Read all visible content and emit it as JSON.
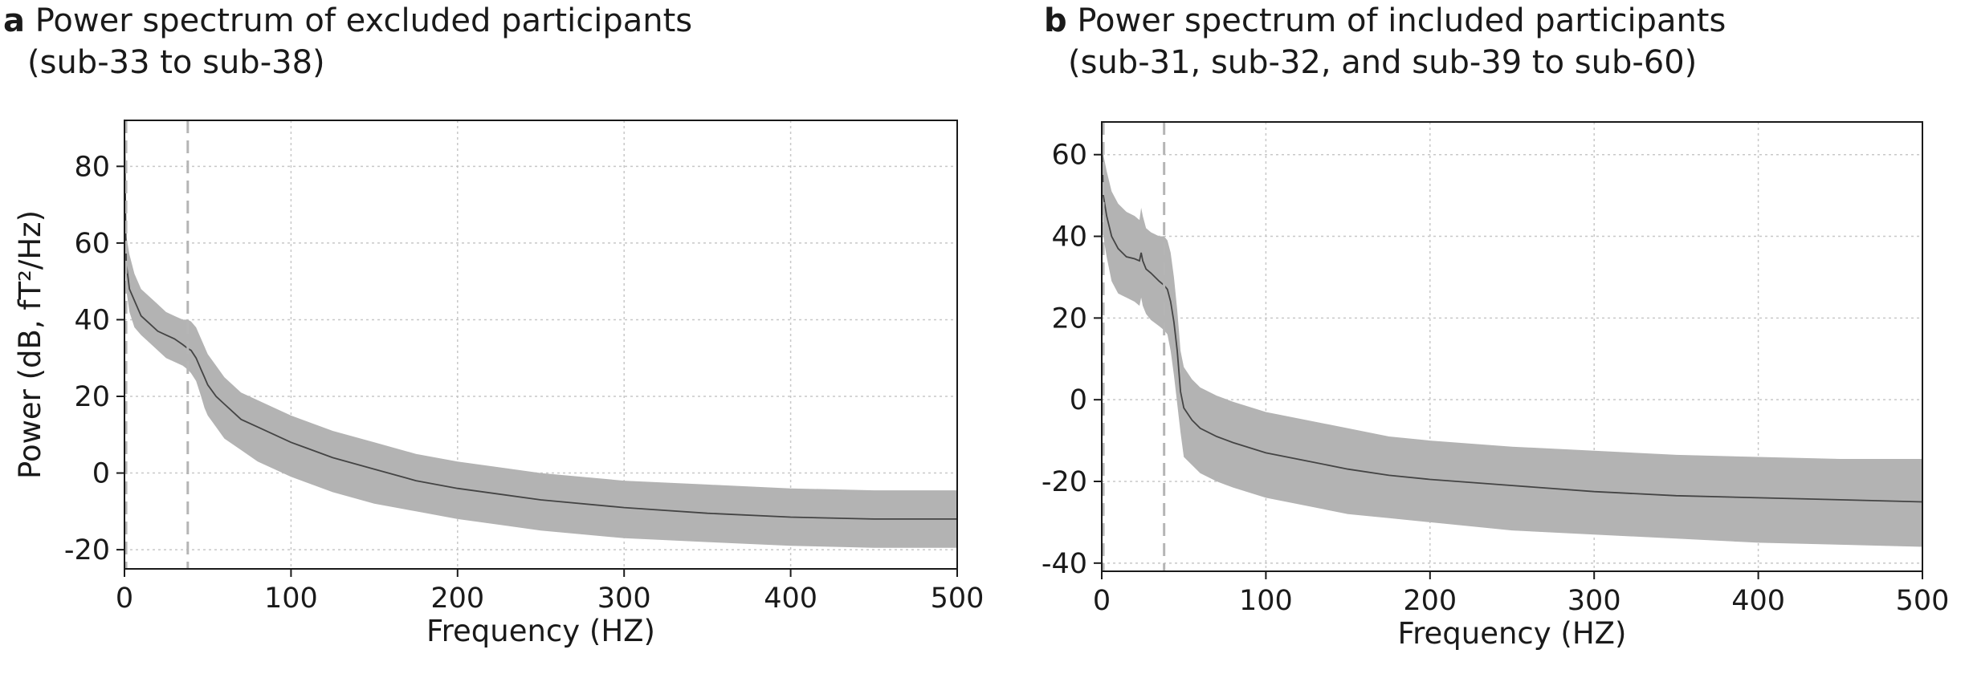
{
  "chart_data": [
    {
      "type": "area",
      "panel_letter": "a",
      "title": "Power spectrum of excluded participants",
      "subtitle": "(sub-33 to sub-38)",
      "xlabel": "Frequency (HZ)",
      "ylabel": "Power (dB, fT²/Hz)",
      "xlim": [
        0,
        500
      ],
      "ylim": [
        -25,
        92
      ],
      "xticks": [
        0,
        100,
        200,
        300,
        400,
        500
      ],
      "yticks": [
        -20,
        0,
        20,
        40,
        60,
        80
      ],
      "grid": true,
      "vlines": [
        1,
        38
      ],
      "line_color": "#444444",
      "band_color": "#b3b3b3",
      "series": [
        {
          "x": [
            0,
            1,
            3,
            6,
            10,
            15,
            20,
            25,
            30,
            35,
            38,
            40,
            43,
            46,
            48,
            50,
            55,
            60,
            70,
            80,
            100,
            125,
            150,
            175,
            200,
            250,
            300,
            350,
            400,
            450,
            500
          ],
          "mean": [
            90,
            55,
            48,
            45,
            41,
            39,
            37,
            36,
            35,
            33.5,
            32.5,
            32,
            30,
            27,
            25,
            23,
            20,
            18,
            14,
            12,
            8,
            4,
            1,
            -2,
            -4,
            -7,
            -9,
            -10.5,
            -11.5,
            -12,
            -12
          ],
          "upper": [
            90,
            62,
            57,
            52,
            48,
            46,
            44,
            42,
            41,
            40,
            40,
            39.5,
            38,
            35,
            33,
            31,
            28,
            25,
            21,
            19,
            15,
            11,
            8,
            5,
            3,
            0,
            -2,
            -3,
            -4,
            -4.5,
            -4.5
          ],
          "lower": [
            60,
            48,
            42,
            38,
            36,
            34,
            32,
            30,
            29,
            28,
            27,
            26,
            24,
            20,
            17,
            15,
            12,
            9,
            6,
            3,
            -1,
            -5,
            -8,
            -10,
            -12,
            -15,
            -17,
            -18,
            -19,
            -19.5,
            -19.5
          ]
        }
      ]
    },
    {
      "type": "area",
      "panel_letter": "b",
      "title": "Power spectrum of included participants",
      "subtitle": "(sub-31, sub-32, and sub-39 to sub-60)",
      "xlabel": "Frequency (HZ)",
      "ylabel": "",
      "xlim": [
        0,
        500
      ],
      "ylim": [
        -42,
        68
      ],
      "xticks": [
        0,
        100,
        200,
        300,
        400,
        500
      ],
      "yticks": [
        -40,
        -20,
        0,
        20,
        40,
        60
      ],
      "grid": true,
      "vlines": [
        1,
        38
      ],
      "line_color": "#444444",
      "band_color": "#b3b3b3",
      "series": [
        {
          "x": [
            0,
            1,
            3,
            6,
            10,
            15,
            20,
            23,
            24,
            25,
            27,
            30,
            35,
            38,
            40,
            42,
            44,
            46,
            48,
            50,
            55,
            60,
            70,
            80,
            100,
            125,
            150,
            175,
            200,
            250,
            300,
            350,
            400,
            450,
            500
          ],
          "mean": [
            63,
            50,
            45,
            40,
            37,
            35,
            34.5,
            34,
            36,
            34,
            32,
            31,
            29,
            28,
            27,
            24,
            19,
            12,
            2,
            -2,
            -5,
            -7,
            -9,
            -10.5,
            -13,
            -15,
            -17,
            -18.5,
            -19.5,
            -21,
            -22.5,
            -23.5,
            -24,
            -24.5,
            -25
          ],
          "upper": [
            65,
            60,
            56,
            51,
            48,
            46,
            45,
            44,
            47,
            45,
            42,
            41,
            40,
            40,
            39,
            36,
            30,
            22,
            12,
            8,
            5,
            3,
            1,
            -0.5,
            -3,
            -5,
            -7,
            -9,
            -10,
            -11.5,
            -12.5,
            -13.5,
            -14,
            -14.5,
            -14.5
          ],
          "lower": [
            58,
            40,
            35,
            29,
            26,
            25,
            24,
            23,
            25,
            23,
            21,
            19.5,
            18,
            17,
            16,
            12,
            6,
            -1,
            -8,
            -14,
            -16,
            -18,
            -20,
            -21.5,
            -24,
            -26,
            -28,
            -29,
            -30,
            -32,
            -33,
            -34,
            -35,
            -35.5,
            -36
          ]
        }
      ]
    }
  ]
}
